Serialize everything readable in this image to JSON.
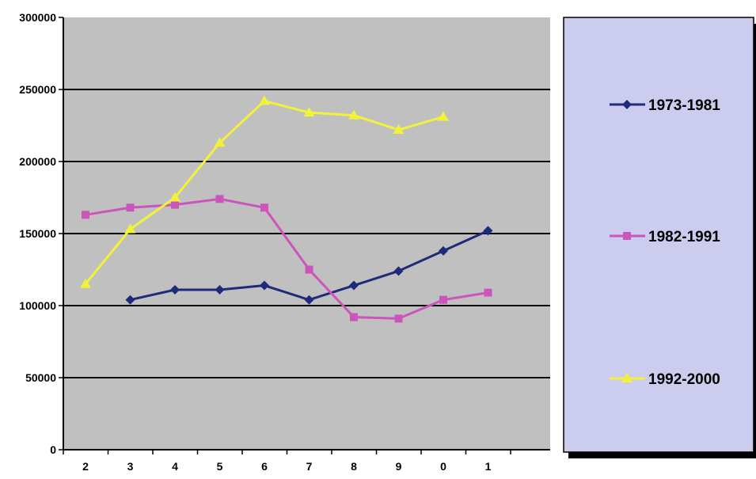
{
  "chart_data": {
    "type": "line",
    "categories": [
      "2",
      "3",
      "4",
      "5",
      "6",
      "7",
      "8",
      "9",
      "0",
      "1"
    ],
    "ylim": [
      0,
      300000
    ],
    "y_ticks": [
      0,
      50000,
      100000,
      150000,
      200000,
      250000,
      300000
    ],
    "y_tick_labels": [
      "0",
      "50000",
      "100000",
      "150000",
      "200000",
      "250000",
      "300000"
    ],
    "grid": true,
    "legend_position": "right",
    "plot_background": "#c0c0c0",
    "legend_background": "#ccccee",
    "series": [
      {
        "name": "1973-1981",
        "color": "#1f2a7a",
        "marker": "diamond",
        "values": [
          null,
          104000,
          111000,
          111000,
          114000,
          104000,
          114000,
          124000,
          138000,
          152000
        ]
      },
      {
        "name": "1982-1991",
        "color": "#cc55bb",
        "marker": "square",
        "values": [
          163000,
          168000,
          170000,
          174000,
          168000,
          125000,
          92000,
          91000,
          104000,
          109000
        ]
      },
      {
        "name": "1992-2000",
        "color": "#f2f23a",
        "marker": "triangle",
        "values": [
          115000,
          153000,
          175000,
          213000,
          242000,
          234000,
          232000,
          222000,
          231000,
          null
        ]
      }
    ]
  }
}
